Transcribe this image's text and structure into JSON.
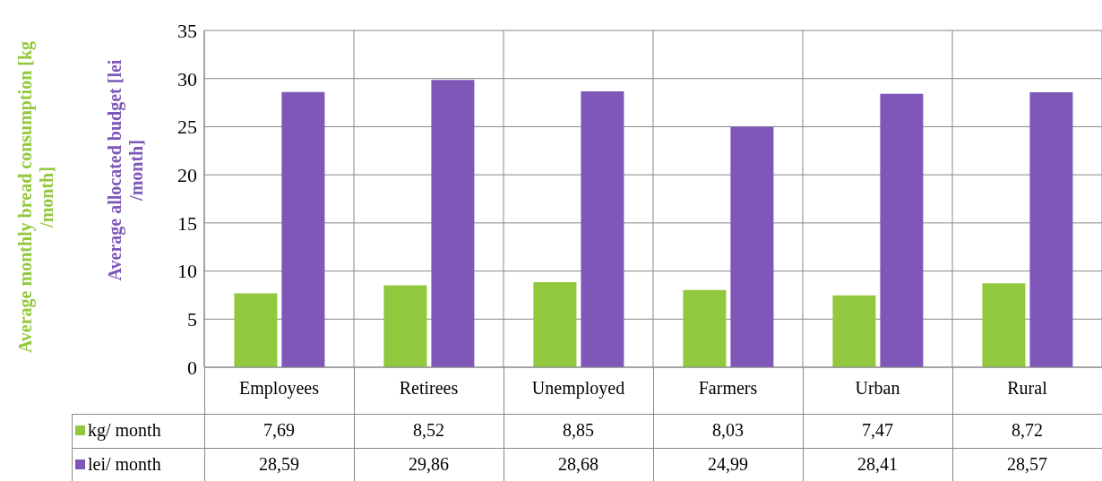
{
  "chart_data": {
    "type": "bar",
    "ylabel": "Average allocated budget [lei /month]",
    "annotations": [
      "Average monthly bread consumption [kg /month]"
    ],
    "categories": [
      "Employees",
      "Retirees",
      "Unemployed",
      "Farmers",
      "Urban",
      "Rural"
    ],
    "series": [
      {
        "name": "kg/ month",
        "color": "#92c83e",
        "values": [
          7.69,
          8.52,
          8.85,
          8.03,
          7.47,
          8.72
        ],
        "value_labels": [
          "7,69",
          "8,52",
          "8,85",
          "8,03",
          "7,47",
          "8,72"
        ]
      },
      {
        "name": "lei/ month",
        "color": "#7e57b8",
        "values": [
          28.59,
          29.86,
          28.68,
          24.99,
          28.41,
          28.57
        ],
        "value_labels": [
          "28,59",
          "29,86",
          "28,68",
          "24,99",
          "28,41",
          "28,57"
        ]
      }
    ],
    "ylim": [
      0,
      35
    ],
    "yticks": [
      0,
      5,
      10,
      15,
      20,
      25,
      30,
      35
    ],
    "grid": true,
    "legend": "bottom"
  }
}
